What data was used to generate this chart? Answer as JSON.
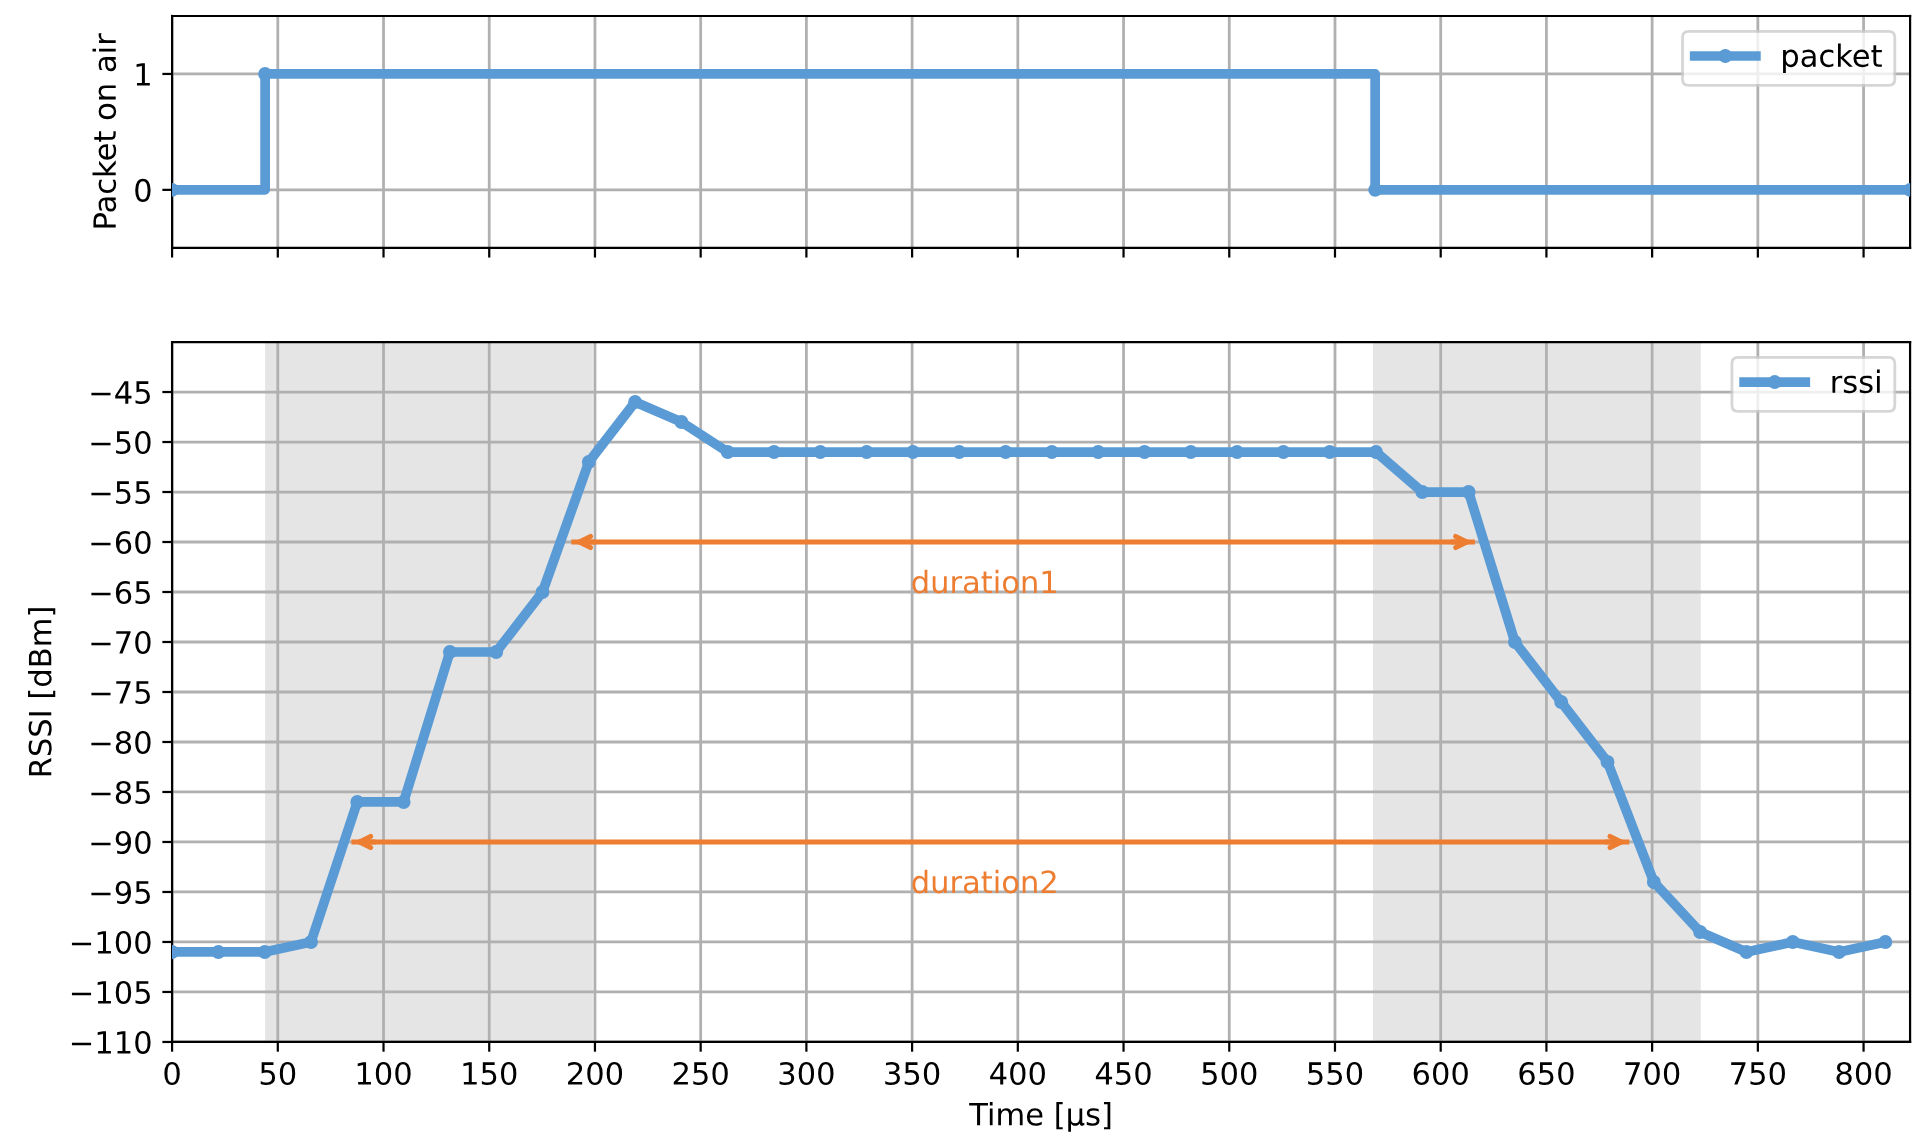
{
  "chart_data": [
    {
      "type": "step",
      "ylabel": "Packet on air",
      "xlim": [
        0,
        822
      ],
      "xticks": [
        0,
        50,
        100,
        150,
        200,
        250,
        300,
        350,
        400,
        450,
        500,
        550,
        600,
        650,
        700,
        750,
        800
      ],
      "ylim": [
        -0.5,
        1.5
      ],
      "yticks": [
        0,
        1
      ],
      "tick_labels": "y",
      "grid": true,
      "legend": "top right",
      "marker": "circle",
      "line_style": "solid",
      "series": [
        {
          "name": "packet",
          "color": "#5b9bd5",
          "x": [
            0,
            44,
            569,
            822
          ],
          "values": [
            0,
            1,
            0,
            0
          ]
        }
      ]
    },
    {
      "type": "line",
      "xlabel": "Time [µs]",
      "ylabel": "RSSI [dBm]",
      "xlim": [
        0,
        822
      ],
      "xticks": [
        0,
        50,
        100,
        150,
        200,
        250,
        300,
        350,
        400,
        450,
        500,
        550,
        600,
        650,
        700,
        750,
        800
      ],
      "ylim": [
        -110,
        -40
      ],
      "yticks": [
        -110,
        -105,
        -100,
        -95,
        -90,
        -85,
        -80,
        -75,
        -70,
        -65,
        -60,
        -55,
        -50,
        -45
      ],
      "grid": true,
      "legend": "top right",
      "marker": "circle",
      "line_style": "solid",
      "bands": [
        {
          "axis": "x",
          "from": 44,
          "to": 199,
          "color": "#e5e5e5"
        },
        {
          "axis": "x",
          "from": 568,
          "to": 723,
          "color": "#e5e5e5"
        }
      ],
      "series": [
        {
          "name": "rssi",
          "color": "#5b9bd5",
          "x": [
            0,
            21.9,
            43.8,
            65.7,
            87.6,
            109.5,
            131.4,
            153.3,
            175.2,
            197.1,
            219,
            240.9,
            262.8,
            284.7,
            306.6,
            328.5,
            350.4,
            372.3,
            394.2,
            416.1,
            438,
            459.9,
            481.8,
            503.7,
            525.6,
            547.5,
            569.4,
            591.3,
            613.2,
            635.1,
            657,
            678.9,
            700.8,
            722.7,
            744.6,
            766.5,
            788.4,
            810.3
          ],
          "values": [
            -101,
            -101,
            -101,
            -100,
            -86,
            -86,
            -71,
            -71,
            -65,
            -52,
            -46,
            -48,
            -51,
            -51,
            -51,
            -51,
            -51,
            -51,
            -51,
            -51,
            -51,
            -51,
            -51,
            -51,
            -51,
            -51,
            -51,
            -55,
            -55,
            -70,
            -76,
            -82,
            -94,
            -99,
            -101,
            -100,
            -101,
            -100
          ]
        },
        {
          "type": "line",
          "marker": "none",
          "color": "#ed7d31",
          "x": [
            190,
            615
          ],
          "values": [
            -60,
            -60
          ]
        },
        {
          "type": "line",
          "marker": "none",
          "color": "#ed7d31",
          "x": [
            86,
            688
          ],
          "values": [
            -90,
            -90
          ]
        }
      ],
      "annotations": [
        "duration1",
        "duration2"
      ]
    }
  ]
}
